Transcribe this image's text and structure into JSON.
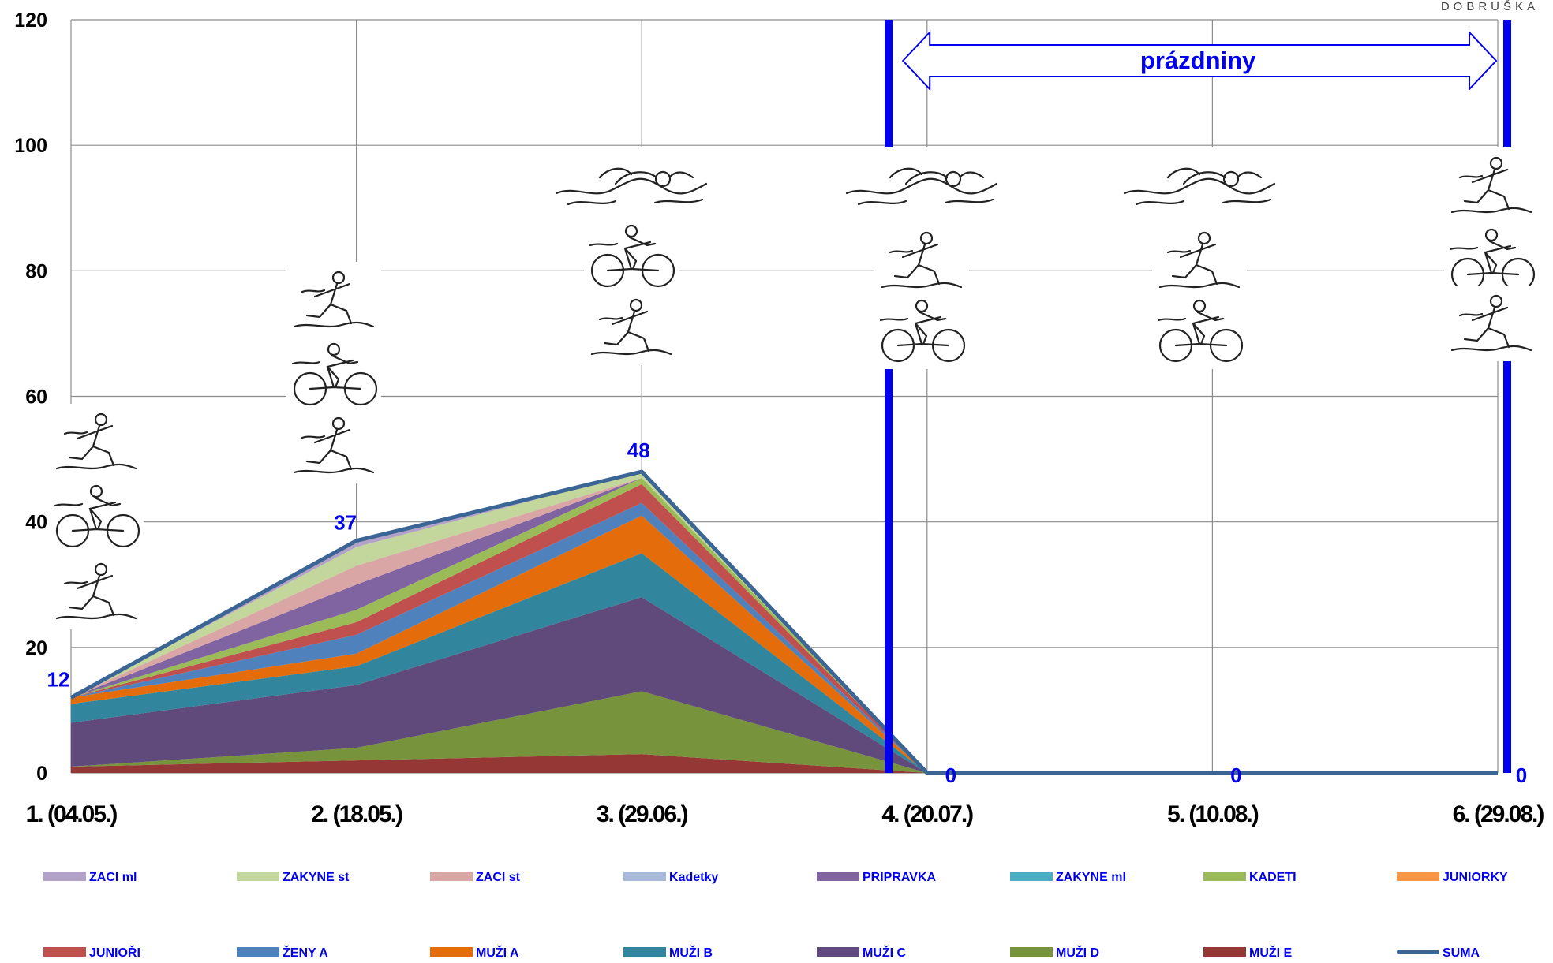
{
  "brand": "DOBRUŠKA",
  "chart_data": {
    "type": "area",
    "categories": [
      "1. (04.05.)",
      "2. (18.05.)",
      "3. (29.06.)",
      "4. (20.07.)",
      "5. (10.08.)",
      "6. (29.08.)"
    ],
    "ylim": [
      0,
      120
    ],
    "yticks": [
      0,
      20,
      40,
      60,
      80,
      100,
      120
    ],
    "grid": true,
    "legend_position": "bottom",
    "series": [
      {
        "name": "MUŽI E",
        "color": "#953735",
        "values": [
          1,
          2,
          3,
          0,
          0,
          0
        ]
      },
      {
        "name": "MUŽI D",
        "color": "#77933C",
        "values": [
          0,
          2,
          10,
          0,
          0,
          0
        ]
      },
      {
        "name": "MUŽI C",
        "color": "#604A7B",
        "values": [
          7,
          10,
          15,
          0,
          0,
          0
        ]
      },
      {
        "name": "MUŽI B",
        "color": "#31859C",
        "values": [
          3,
          3,
          7,
          0,
          0,
          0
        ]
      },
      {
        "name": "MUŽI A",
        "color": "#E46C0A",
        "values": [
          1,
          2,
          6,
          0,
          0,
          0
        ]
      },
      {
        "name": "ŽENY A",
        "color": "#4F81BD",
        "values": [
          0,
          3,
          2,
          0,
          0,
          0
        ]
      },
      {
        "name": "JUNIOŘI",
        "color": "#C0504D",
        "values": [
          0,
          2,
          3,
          0,
          0,
          0
        ]
      },
      {
        "name": "JUNIORKY",
        "color": "#F79646",
        "values": [
          0,
          0,
          0,
          0,
          0,
          0
        ]
      },
      {
        "name": "KADETI",
        "color": "#9BBB59",
        "values": [
          0,
          2,
          1,
          0,
          0,
          0
        ]
      },
      {
        "name": "ZAKYNE ml",
        "color": "#4BACC6",
        "values": [
          0,
          0,
          0,
          0,
          0,
          0
        ]
      },
      {
        "name": "PRIPRAVKA",
        "color": "#8064A2",
        "values": [
          0,
          4,
          0,
          0,
          0,
          0
        ]
      },
      {
        "name": "Kadetky",
        "color": "#A9B9D9",
        "values": [
          0,
          0,
          0,
          0,
          0,
          0
        ]
      },
      {
        "name": "ZACI st",
        "color": "#D9A5A5",
        "values": [
          0,
          3,
          0,
          0,
          0,
          0
        ]
      },
      {
        "name": "ZAKYNE st",
        "color": "#C3D69B",
        "values": [
          0,
          3,
          1,
          0,
          0,
          0
        ]
      },
      {
        "name": "ZACI ml",
        "color": "#B3A2C7",
        "values": [
          0,
          1,
          0,
          0,
          0,
          0
        ]
      }
    ],
    "total": {
      "name": "SUMA",
      "color": "#3A6595",
      "values": [
        12,
        37,
        48,
        0,
        0,
        0
      ]
    },
    "total_labels": [
      "12",
      "37",
      "48",
      "0",
      "0",
      "0"
    ],
    "legend": [
      "ZACI ml",
      "ZAKYNE st",
      "ZACI st",
      "Kadetky",
      "PRIPRAVKA",
      "ZAKYNE ml",
      "KADETI",
      "JUNIORKY",
      "JUNIOŘI",
      "ŽENY A",
      "MUŽI A",
      "MUŽI B",
      "MUŽI C",
      "MUŽI D",
      "MUŽI E",
      "SUMA"
    ],
    "annotation": {
      "text": "prázdniny",
      "color": "#0000EE"
    },
    "icons": [
      [
        "runner-icon",
        "cyclist-icon",
        "runner-icon"
      ],
      [
        "runner-icon",
        "cyclist-icon",
        "runner-icon"
      ],
      [
        "swimmer-icon",
        "cyclist-icon",
        "runner-icon"
      ],
      [
        "swimmer-icon",
        "runner-icon",
        "cyclist-icon"
      ],
      [
        "swimmer-icon",
        "runner-icon",
        "cyclist-icon"
      ],
      [
        "runner-icon",
        "cyclist-icon",
        "runner-icon"
      ]
    ]
  }
}
